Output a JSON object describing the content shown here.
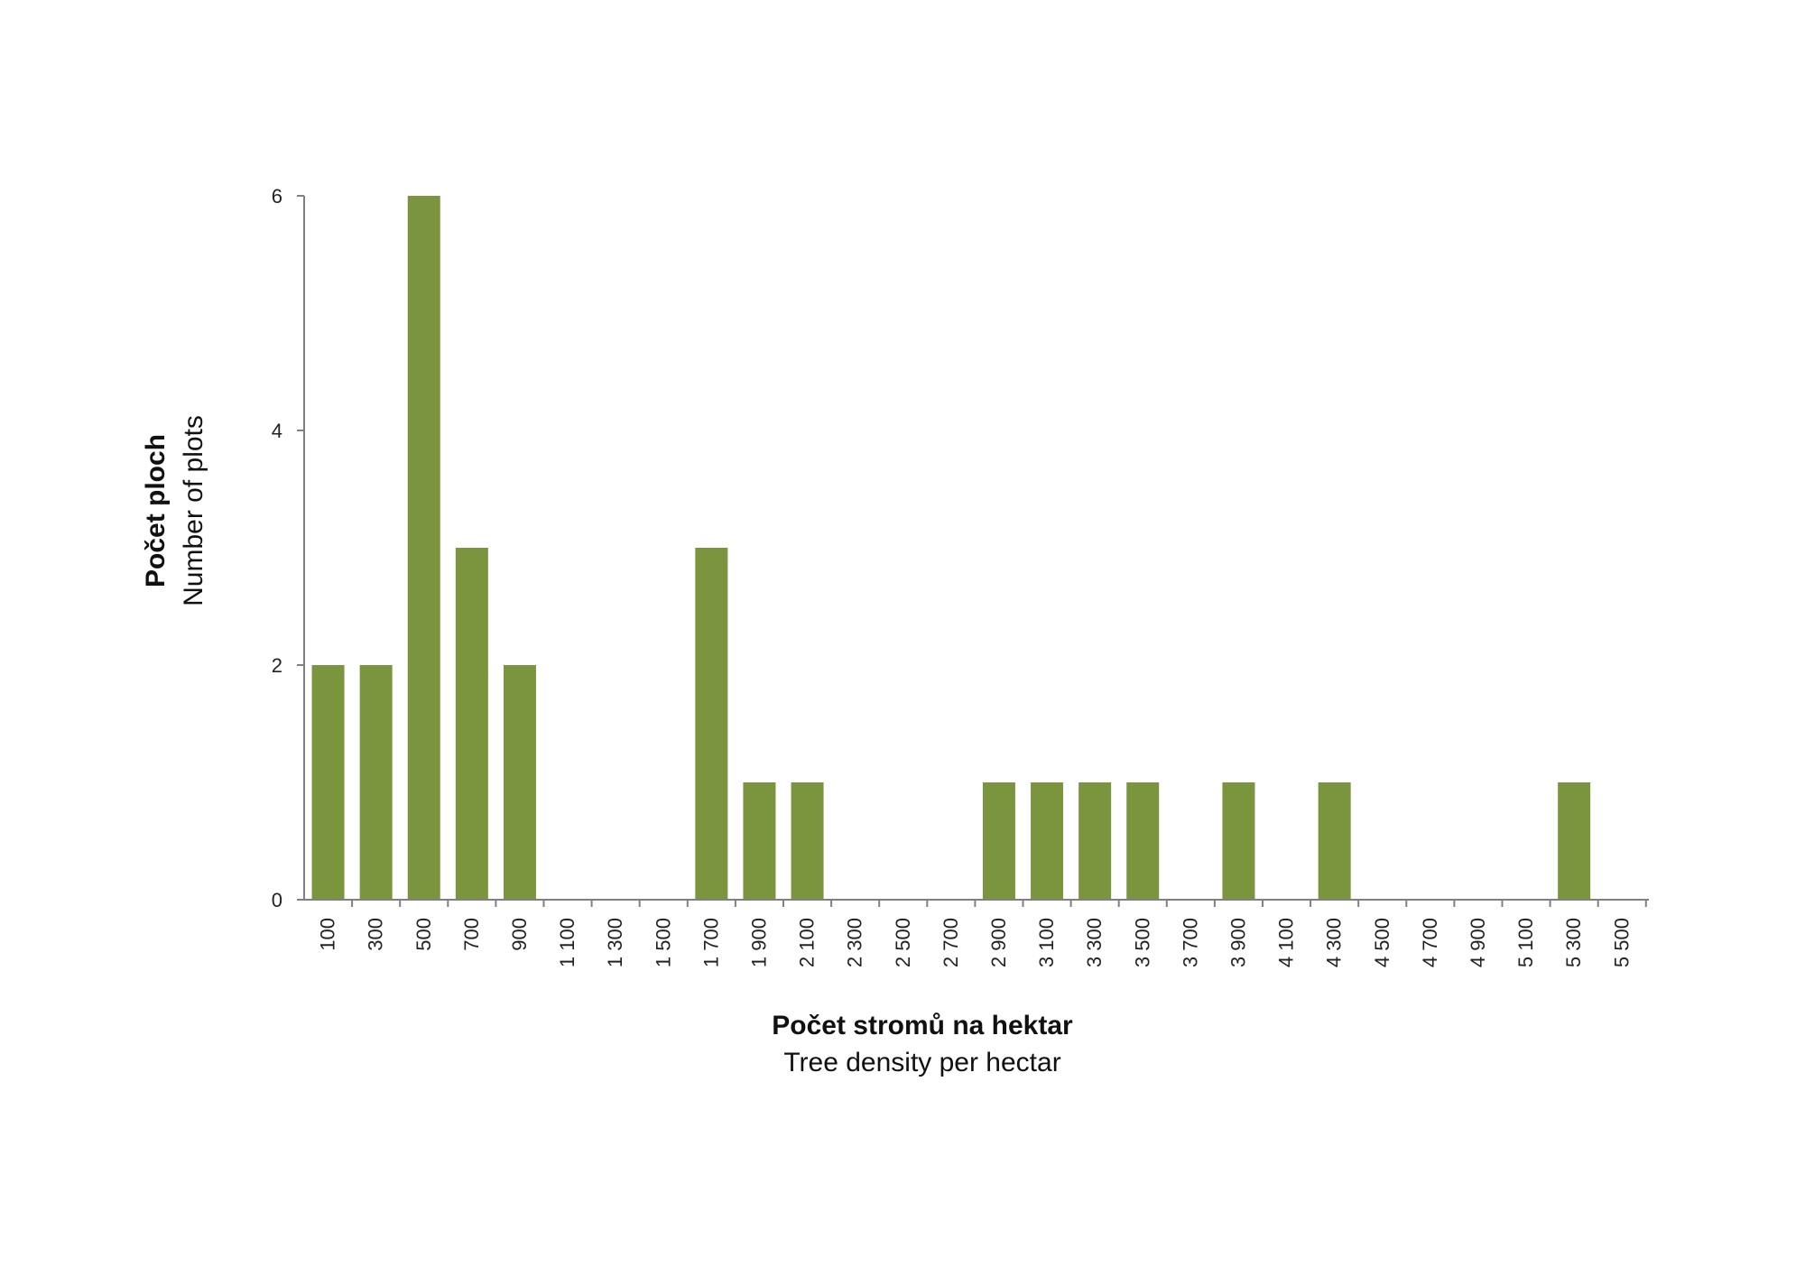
{
  "chart_data": {
    "type": "bar",
    "categories": [
      "100",
      "300",
      "500",
      "700",
      "900",
      "1 100",
      "1 300",
      "1 500",
      "1 700",
      "1 900",
      "2 100",
      "2 300",
      "2 500",
      "2 700",
      "2 900",
      "3 100",
      "3 300",
      "3 500",
      "3 700",
      "3 900",
      "4 100",
      "4 300",
      "4 500",
      "4 700",
      "4 900",
      "5 100",
      "5 300",
      "5 500"
    ],
    "values": [
      2,
      2,
      6,
      3,
      2,
      0,
      0,
      0,
      3,
      1,
      1,
      0,
      0,
      0,
      1,
      1,
      1,
      1,
      0,
      1,
      0,
      1,
      0,
      0,
      0,
      0,
      1,
      0
    ],
    "ylim": [
      0,
      6
    ],
    "yticks": [
      0,
      2,
      4,
      6
    ],
    "xlabel": "Počet stromů na hektar",
    "xlabel_secondary": "Tree density per hectar",
    "ylabel": "Počet ploch",
    "ylabel_secondary": "Number of plots",
    "grid": false,
    "bar_color": "#7a953e",
    "axis_color": "#808080"
  }
}
